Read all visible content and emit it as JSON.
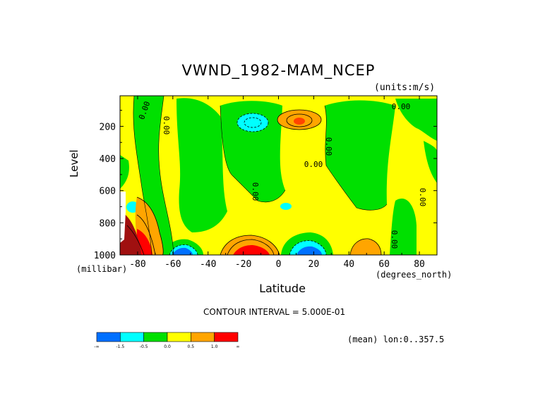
{
  "chart_data": {
    "type": "contour",
    "title": "VWND_1982-MAM_NCEP",
    "units_label": "(units:m/s)",
    "xlabel": "Latitude",
    "xunit": "(degrees_north)",
    "ylabel": "Level",
    "yunit": "(millibar)",
    "xlim": [
      -90,
      90
    ],
    "ylim": [
      1000,
      10
    ],
    "y_inverted": true,
    "x_ticks": [
      -80,
      -60,
      -40,
      -20,
      0,
      20,
      40,
      60,
      80
    ],
    "y_ticks": [
      200,
      400,
      600,
      800,
      1000
    ],
    "contour_interval_text": "CONTOUR INTERVAL = 5.000E-01",
    "mean_text": "(mean) lon:0..357.5",
    "zero_labels": [
      "0.00",
      "0.00",
      "0.00",
      "0.00",
      "0.00",
      "0.00",
      "0.00",
      "0.00"
    ],
    "colorbar": {
      "colors": [
        "#0070ff",
        "#00ffff",
        "#00e000",
        "#ffff00",
        "#ffa500",
        "#ff0000"
      ],
      "labels": [
        "-∞",
        "-1.5",
        "-0.5",
        "0.0",
        "0.5",
        "1.0",
        "∞"
      ]
    },
    "features": [
      {
        "name": "upper-tropical-anticyclone",
        "lat": 12,
        "level": 150,
        "value": 1.5
      },
      {
        "name": "upper-subtropical-minimum",
        "lat": -18,
        "level": 160,
        "value": -1.0
      },
      {
        "name": "surface-max-south",
        "lat": -15,
        "level": 990,
        "value": 1.7
      },
      {
        "name": "surface-min-tropics",
        "lat": 17,
        "level": 990,
        "value": -1.5
      },
      {
        "name": "surface-min-south",
        "lat": -58,
        "level": 990,
        "value": -1.5
      },
      {
        "name": "antarctic-max",
        "lat": -86,
        "level": 950,
        "value": 2.5
      },
      {
        "name": "surface-max-30N",
        "lat": 50,
        "level": 990,
        "value": 0.8
      }
    ]
  }
}
